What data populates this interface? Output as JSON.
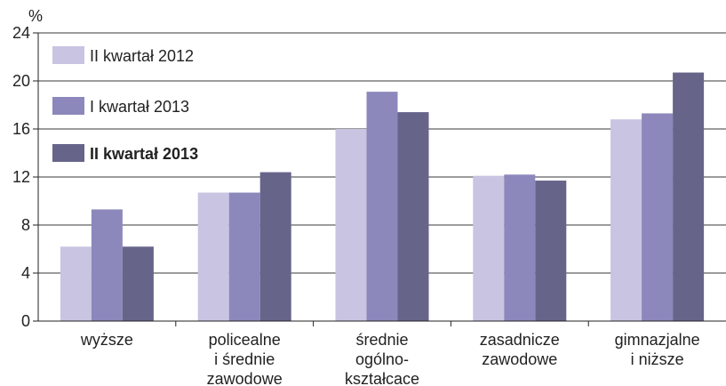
{
  "chart_data": {
    "type": "bar",
    "unit_label": "%",
    "ylim": [
      0,
      24
    ],
    "yticks": [
      "0",
      "4",
      "8",
      "12",
      "16",
      "20",
      "24"
    ],
    "grid": true,
    "legend_position": "top-left",
    "categories": [
      [
        "wyższe"
      ],
      [
        "policealne",
        "i średnie",
        "zawodowe"
      ],
      [
        "średnie",
        "ogólno-",
        "kształcace"
      ],
      [
        "zasadnicze",
        "zawodowe"
      ],
      [
        "gimnazjalne",
        "i niższe"
      ]
    ],
    "series": [
      {
        "name": "II kwartał 2012",
        "color": "#c8c4e2",
        "bold": false,
        "values": [
          6.2,
          10.7,
          16.0,
          12.1,
          16.8
        ]
      },
      {
        "name": "I kwartał 2013",
        "color": "#8c88bc",
        "bold": false,
        "values": [
          9.3,
          10.7,
          19.1,
          12.2,
          17.3
        ]
      },
      {
        "name": "II kwartał 2013",
        "color": "#67648a",
        "bold": true,
        "values": [
          6.2,
          12.4,
          17.4,
          11.7,
          20.7
        ]
      }
    ]
  }
}
